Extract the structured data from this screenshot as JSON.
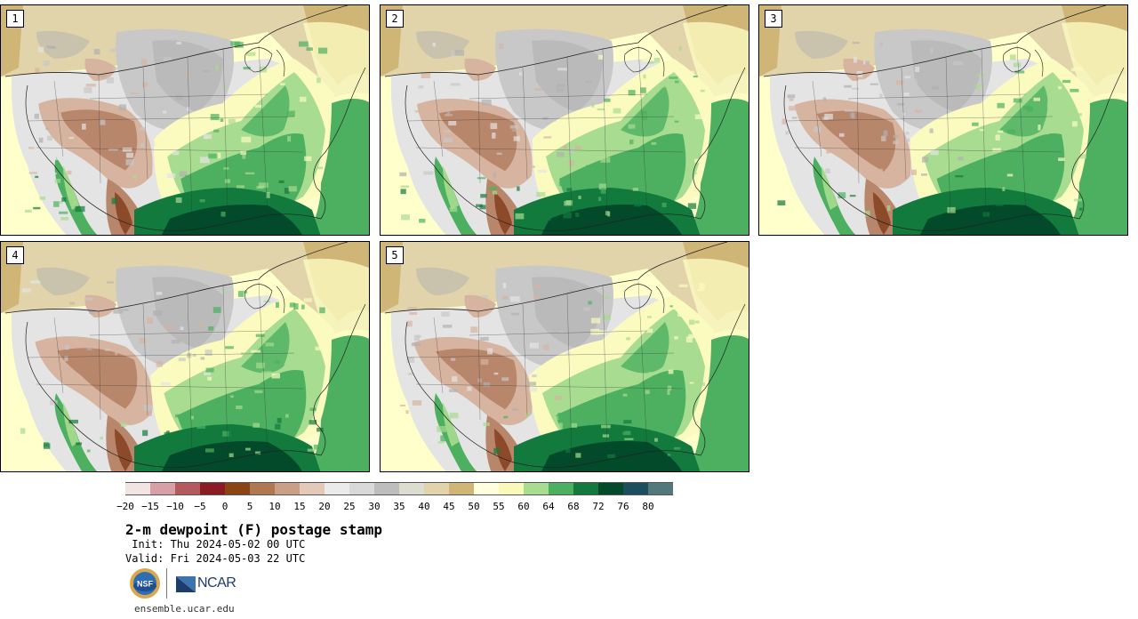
{
  "figure": {
    "title": "2-m dewpoint (F) postage stamp",
    "init_line": " Init: Thu 2024-05-02 00 UTC",
    "valid_line": "Valid: Fri 2024-05-03 22 UTC",
    "website": "ensemble.ucar.edu",
    "logos": {
      "nsf_text": "NSF",
      "ncar_text": "NCAR"
    }
  },
  "panels": [
    {
      "label": "1"
    },
    {
      "label": "2"
    },
    {
      "label": "3"
    },
    {
      "label": "4"
    },
    {
      "label": "5"
    }
  ],
  "colorbar": {
    "ticks": [
      "−20",
      "−15",
      "−10",
      "−5",
      "0",
      "5",
      "10",
      "15",
      "20",
      "25",
      "30",
      "35",
      "40",
      "45",
      "50",
      "55",
      "60",
      "64",
      "68",
      "72",
      "76",
      "80"
    ],
    "colors": [
      "#f3e4e4",
      "#d7a0a4",
      "#b45a5f",
      "#8c1c24",
      "#8b4413",
      "#b07850",
      "#c9a086",
      "#e4c8b8",
      "#ebebeb",
      "#d9d9d9",
      "#bdbdbd",
      "#dcdcd0",
      "#e2d4aa",
      "#d0b676",
      "#ffffe0",
      "#f9f9ba",
      "#a8dc90",
      "#4cb060",
      "#127a3c",
      "#024a2a",
      "#1c4e5e",
      "#52787c"
    ]
  }
}
